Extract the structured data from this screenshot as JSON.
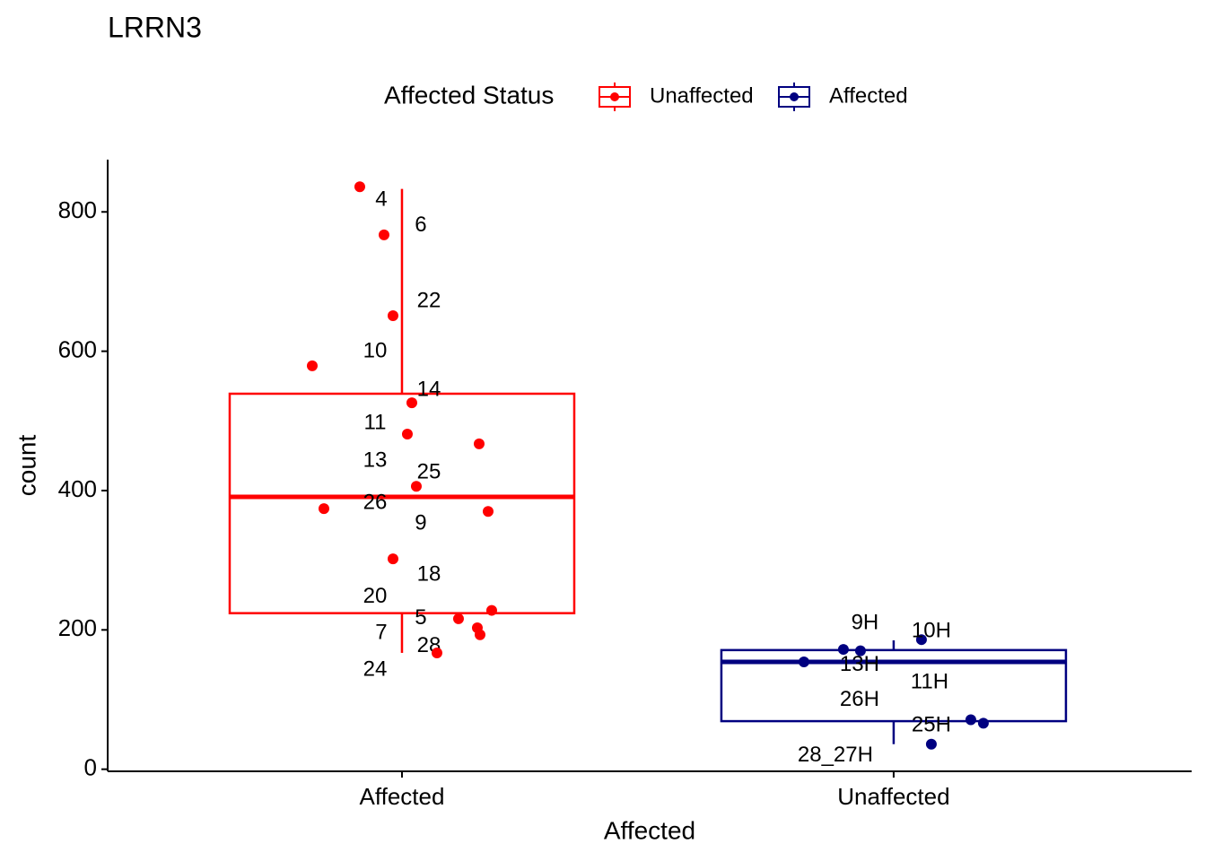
{
  "chart_data": {
    "type": "box",
    "title": "LRRN3",
    "x_label": "Affected",
    "y_label": "count",
    "legend_title": "Affected Status",
    "legend": "top",
    "categories": [
      "Affected",
      "Unaffected"
    ],
    "ylim": [
      -3,
      875
    ],
    "yticks": [
      0,
      200,
      400,
      600,
      800
    ],
    "series": [
      {
        "name": "Unaffected",
        "color": "#ff0000",
        "box": {
          "whisker_low": 167,
          "q1": 224,
          "median": 391,
          "q3": 539,
          "whisker_high": 833
        },
        "values": [
          836,
          767,
          651,
          579,
          526,
          481,
          467,
          406,
          374,
          370,
          302,
          228,
          216,
          203,
          193,
          167
        ],
        "labels": [
          "4",
          "6",
          "22",
          "10",
          "14",
          "11",
          "13",
          "25",
          "26",
          "9",
          "18",
          "20",
          "5",
          "7",
          "28",
          "24"
        ]
      },
      {
        "name": "Affected",
        "color": "#000080",
        "box": {
          "whisker_low": 36,
          "q1": 69,
          "median": 154,
          "q3": 171,
          "whisker_high": 185
        },
        "values": [
          186,
          172,
          170,
          154,
          71,
          66,
          36
        ],
        "labels": [
          "10H",
          "9H",
          "13H",
          "11H",
          "26H",
          "25H",
          "28_27H"
        ]
      }
    ]
  }
}
